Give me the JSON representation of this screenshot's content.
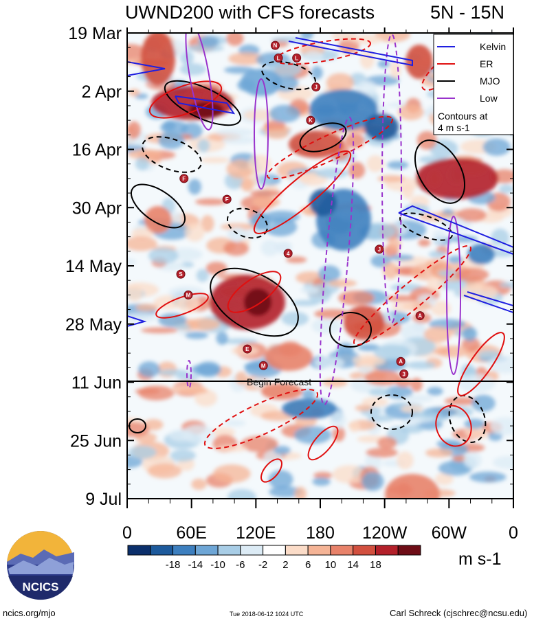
{
  "chart_data": {
    "type": "heatmap",
    "title": "UWND200 with CFS forecasts",
    "region": "5N - 15N",
    "y_ticks": [
      "19 Mar",
      "2 Apr",
      "16 Apr",
      "30 Apr",
      "14 May",
      "28 May",
      "11 Jun",
      "25 Jun",
      "9 Jul"
    ],
    "x_ticks": [
      "0",
      "60E",
      "120E",
      "180",
      "120W",
      "60W",
      "0"
    ],
    "x_range": [
      0,
      360
    ],
    "forecast_line_label": "Begin Forecast",
    "forecast_start": "11 Jun",
    "legend": {
      "entries": [
        {
          "label": "Kelvin",
          "color": "#1f1fe0"
        },
        {
          "label": "ER",
          "color": "#e01010"
        },
        {
          "label": "MJO",
          "color": "#000000"
        },
        {
          "label": "Low",
          "color": "#9933cc"
        }
      ],
      "note_line1": "Contours at",
      "note_line2": "4 m s-1",
      "placement": "top-right"
    },
    "colorbar": {
      "labels": [
        "-18",
        "-14",
        "-10",
        "-6",
        "-2",
        "2",
        "6",
        "10",
        "14",
        "18"
      ],
      "colors": [
        "#0b2f6b",
        "#1d5a9c",
        "#3d7fbf",
        "#6ea6d6",
        "#a8cde6",
        "#dcebf5",
        "#ffffff",
        "#fbdcc8",
        "#f5b496",
        "#e8826a",
        "#d2503f",
        "#b3202a",
        "#6e0d16"
      ],
      "units": "m s-1"
    },
    "storm_markers": [
      {
        "label": "N",
        "lon": 138,
        "date": "22 Mar"
      },
      {
        "label": "L",
        "lon": 141,
        "date": "25 Mar"
      },
      {
        "label": "L",
        "lon": 158,
        "date": "25 Mar"
      },
      {
        "label": "J",
        "lon": 176,
        "date": "1 Apr"
      },
      {
        "label": "K",
        "lon": 171,
        "date": "9 Apr"
      },
      {
        "label": "F",
        "lon": 53,
        "date": "23 Apr"
      },
      {
        "label": "F",
        "lon": 93,
        "date": "28 Apr"
      },
      {
        "label": "4",
        "lon": 150,
        "date": "11 May"
      },
      {
        "label": "J",
        "lon": 235,
        "date": "10 May"
      },
      {
        "label": "S",
        "lon": 50,
        "date": "16 May"
      },
      {
        "label": "M",
        "lon": 57,
        "date": "21 May"
      },
      {
        "label": "A",
        "lon": 273,
        "date": "26 May"
      },
      {
        "label": "E",
        "lon": 112,
        "date": "3 Jun"
      },
      {
        "label": "M",
        "lon": 127,
        "date": "7 Jun"
      },
      {
        "label": "A",
        "lon": 255,
        "date": "6 Jun"
      },
      {
        "label": "3",
        "lon": 258,
        "date": "9 Jun"
      }
    ]
  },
  "logo": {
    "text": "NCICS"
  },
  "footer": {
    "left": "ncics.org/mjo",
    "center": "Tue 2018-06-12 1024 UTC",
    "right": "Carl Schreck (cjschrec@ncsu.edu)"
  }
}
